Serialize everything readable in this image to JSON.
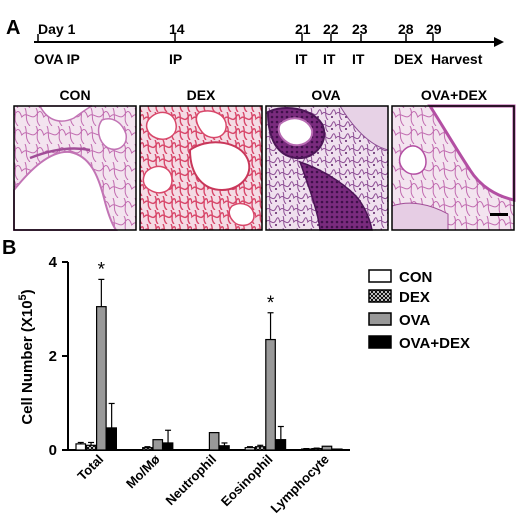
{
  "figure": {
    "panel_a_label": "A",
    "panel_b_label": "B",
    "timeline": {
      "days": [
        "Day 1",
        "14",
        "21",
        "22",
        "23",
        "28",
        "29"
      ],
      "treatments": [
        "OVA IP",
        "IP",
        "IT",
        "IT",
        "IT",
        "DEX",
        "Harvest"
      ]
    },
    "micrographs": [
      {
        "label": "CON"
      },
      {
        "label": "DEX"
      },
      {
        "label": "OVA"
      },
      {
        "label": "OVA+DEX"
      }
    ],
    "colors": {
      "stain_pink": "#e9a3d2",
      "stain_purple": "#7a2b7e",
      "stain_red": "#d8476a",
      "bar_ova": "#999999",
      "bar_ovadex": "#000000"
    }
  },
  "chart_data": {
    "type": "bar",
    "categories": [
      "Total",
      "Mo/Mø",
      "Neutrophil",
      "Eosinophil",
      "Lymphocyte"
    ],
    "ylabel_main": "Cell Number (X10",
    "ylabel_sup": "5",
    "ylabel_close": ")",
    "ylim": [
      0,
      4
    ],
    "yticks": [
      "0",
      "2",
      "4"
    ],
    "legend_position": "top-right",
    "series": [
      {
        "name": "CON",
        "values": [
          0.13,
          0.0,
          0.0,
          0.05,
          0.02
        ],
        "errors": [
          0.03,
          0.0,
          0.0,
          0.02,
          0.01
        ],
        "fill": "#ffffff",
        "pattern": "none"
      },
      {
        "name": "DEX",
        "values": [
          0.1,
          0.05,
          0.0,
          0.07,
          0.03
        ],
        "errors": [
          0.06,
          0.02,
          0.0,
          0.03,
          0.01
        ],
        "fill": "#ffffff",
        "pattern": "crosshatch"
      },
      {
        "name": "OVA",
        "values": [
          3.05,
          0.22,
          0.37,
          2.35,
          0.08
        ],
        "errors": [
          0.58,
          0.0,
          0.0,
          0.57,
          0.0
        ],
        "fill": "#999999",
        "pattern": "none"
      },
      {
        "name": "OVA+DEX",
        "values": [
          0.47,
          0.15,
          0.09,
          0.22,
          0.02
        ],
        "errors": [
          0.52,
          0.27,
          0.06,
          0.28,
          0.0
        ],
        "fill": "#000000",
        "pattern": "none"
      }
    ],
    "annotations": [
      {
        "text": "*",
        "category": "Total",
        "series": "OVA"
      },
      {
        "text": "*",
        "category": "Eosinophil",
        "series": "OVA"
      }
    ]
  }
}
